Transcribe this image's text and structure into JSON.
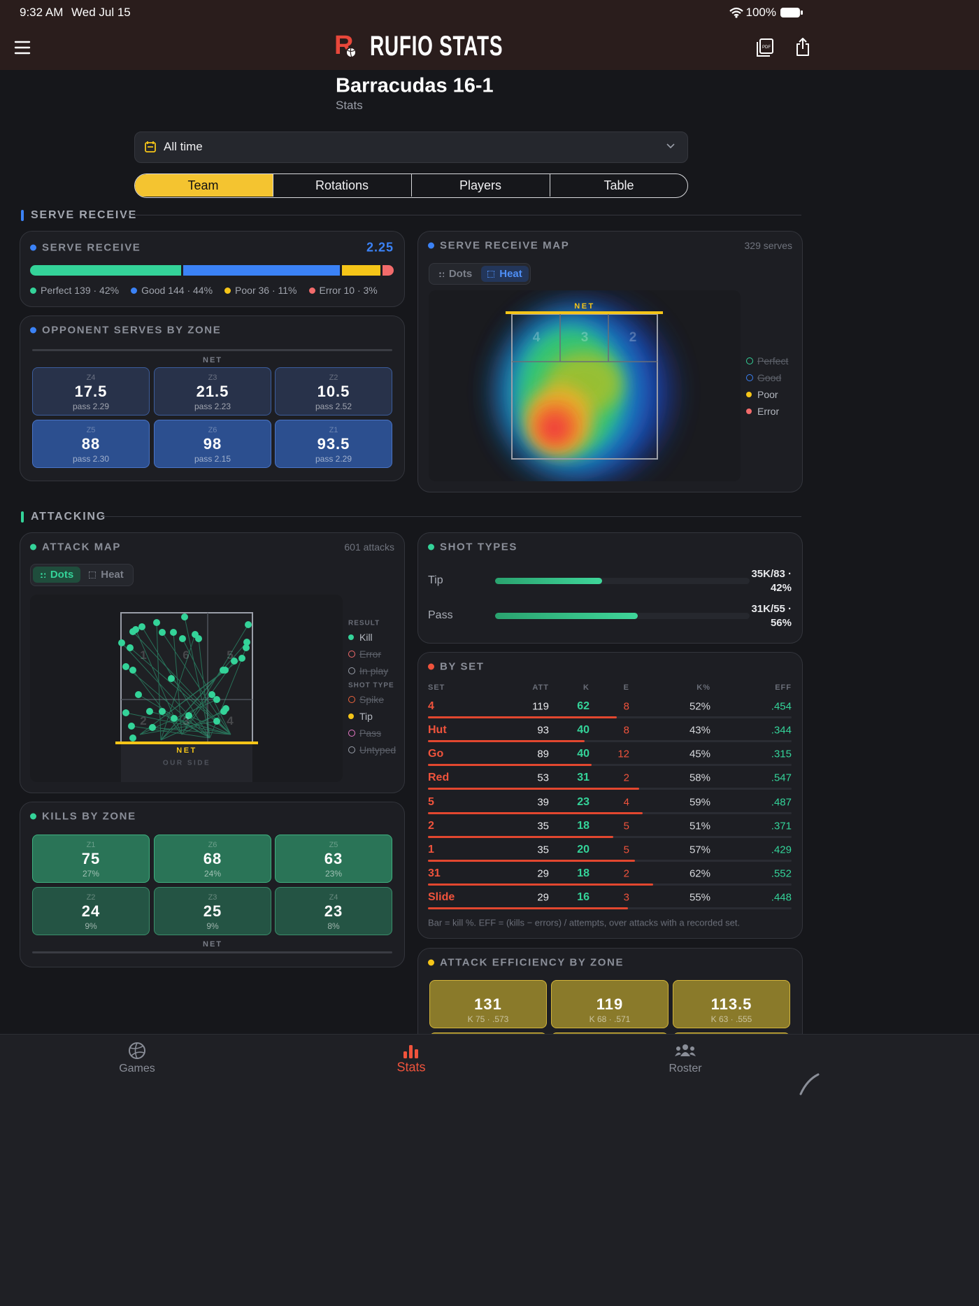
{
  "status_bar": {
    "time": "9:32 AM",
    "date": "Wed Jul 15",
    "battery": "100%"
  },
  "header": {
    "app_name": "RUFIO STATS"
  },
  "page": {
    "title": "Barracudas 16-1",
    "subtitle": "Stats"
  },
  "filter": {
    "label": "All time"
  },
  "tabs": {
    "items": [
      "Team",
      "Rotations",
      "Players",
      "Table"
    ],
    "active": 0
  },
  "serve_receive": {
    "section_title": "SERVE RECEIVE",
    "summary": {
      "title": "SERVE RECEIVE",
      "score": 2.25,
      "values": [
        139,
        144,
        36,
        10
      ],
      "value_labels": [
        "Perfect 139 · 42%",
        "Good 144 · 44%",
        "Poor 36 · 11%",
        "Error 10 · 3%"
      ],
      "colors": [
        "#34d399",
        "#3b82f6",
        "#f5c518",
        "#f26b6b"
      ]
    },
    "opponent_zones": {
      "title": "OPPONENT SERVES BY ZONE",
      "net_label": "NET",
      "zones": [
        {
          "zone": "Z4",
          "value": 17.5,
          "pass": "pass 2.29"
        },
        {
          "zone": "Z3",
          "value": 21.5,
          "pass": "pass 2.23"
        },
        {
          "zone": "Z2",
          "value": 10.5,
          "pass": "pass 2.52"
        },
        {
          "zone": "Z5",
          "value": 88,
          "pass": "pass 2.30"
        },
        {
          "zone": "Z6",
          "value": 98,
          "pass": "pass 2.15"
        },
        {
          "zone": "Z1",
          "value": 93.5,
          "pass": "pass 2.29"
        }
      ]
    },
    "map": {
      "title": "SERVE RECEIVE MAP",
      "count": "329 serves",
      "toggle": {
        "items": [
          "Dots",
          "Heat"
        ],
        "active": 1
      },
      "net_label": "NET",
      "zone_labels": [
        "4",
        "3",
        "2"
      ],
      "legend": [
        {
          "label": "Perfect",
          "color": "#34d399",
          "enabled": false
        },
        {
          "label": "Good",
          "color": "#3b82f6",
          "enabled": false
        },
        {
          "label": "Poor",
          "color": "#f5c518",
          "enabled": true
        },
        {
          "label": "Error",
          "color": "#f26b6b",
          "enabled": true
        }
      ]
    }
  },
  "attacking": {
    "section_title": "ATTACKING",
    "map": {
      "title": "ATTACK MAP",
      "count": "601 attacks",
      "toggle": {
        "items": [
          "Dots",
          "Heat"
        ],
        "active": 0
      },
      "zone_labels": [
        "1",
        "6",
        "5",
        "2",
        "3",
        "4"
      ],
      "net_label": "NET",
      "side_label": "OUR SIDE",
      "legend_groups": [
        {
          "title": "RESULT",
          "items": [
            {
              "label": "Kill",
              "color": "#34d399",
              "enabled": true
            },
            {
              "label": "Error",
              "color": "#f26b6b",
              "enabled": false
            },
            {
              "label": "In play",
              "color": "#9aa0aa",
              "enabled": false
            }
          ]
        },
        {
          "title": "SHOT TYPE",
          "items": [
            {
              "label": "Spike",
              "color": "#f0643c",
              "enabled": false
            },
            {
              "label": "Tip",
              "color": "#f5c518",
              "enabled": true
            },
            {
              "label": "Pass",
              "color": "#e879c6",
              "enabled": false
            },
            {
              "label": "Untyped",
              "color": "#9aa0aa",
              "enabled": false
            }
          ]
        }
      ]
    },
    "shot_types": {
      "title": "SHOT TYPES",
      "xlim": [
        0,
        100
      ],
      "categories": [
        "Tip",
        "Pass"
      ],
      "values": [
        42,
        56
      ],
      "value_labels": [
        "35K/83 · 42%",
        "31K/55 · 56%"
      ]
    },
    "by_set": {
      "title": "BY SET",
      "xlim": [
        0,
        100
      ],
      "columns": [
        "SET",
        "ATT",
        "K",
        "E",
        "K%",
        "EFF"
      ],
      "rows": [
        {
          "set": "4",
          "att": 119,
          "k": 62,
          "e": 8,
          "kill_pct": 52,
          "kill_pct_label": "52%",
          "eff": ".454"
        },
        {
          "set": "Hut",
          "att": 93,
          "k": 40,
          "e": 8,
          "kill_pct": 43,
          "kill_pct_label": "43%",
          "eff": ".344"
        },
        {
          "set": "Go",
          "att": 89,
          "k": 40,
          "e": 12,
          "kill_pct": 45,
          "kill_pct_label": "45%",
          "eff": ".315"
        },
        {
          "set": "Red",
          "att": 53,
          "k": 31,
          "e": 2,
          "kill_pct": 58,
          "kill_pct_label": "58%",
          "eff": ".547"
        },
        {
          "set": "5",
          "att": 39,
          "k": 23,
          "e": 4,
          "kill_pct": 59,
          "kill_pct_label": "59%",
          "eff": ".487"
        },
        {
          "set": "2",
          "att": 35,
          "k": 18,
          "e": 5,
          "kill_pct": 51,
          "kill_pct_label": "51%",
          "eff": ".371"
        },
        {
          "set": "1",
          "att": 35,
          "k": 20,
          "e": 5,
          "kill_pct": 57,
          "kill_pct_label": "57%",
          "eff": ".429"
        },
        {
          "set": "31",
          "att": 29,
          "k": 18,
          "e": 2,
          "kill_pct": 62,
          "kill_pct_label": "62%",
          "eff": ".552"
        },
        {
          "set": "Slide",
          "att": 29,
          "k": 16,
          "e": 3,
          "kill_pct": 55,
          "kill_pct_label": "55%",
          "eff": ".448"
        }
      ],
      "note": "Bar = kill %. EFF = (kills − errors) / attempts, over attacks with a recorded set."
    },
    "kills_by_zone": {
      "title": "KILLS BY ZONE",
      "net_label": "NET",
      "zones": [
        {
          "zone": "Z1",
          "value": 75,
          "share": "27%"
        },
        {
          "zone": "Z6",
          "value": 68,
          "share": "24%"
        },
        {
          "zone": "Z5",
          "value": 63,
          "share": "23%"
        },
        {
          "zone": "Z2",
          "value": 24,
          "share": "9%"
        },
        {
          "zone": "Z3",
          "value": 25,
          "share": "9%"
        },
        {
          "zone": "Z4",
          "value": 23,
          "share": "8%"
        }
      ]
    },
    "efficiency_by_zone": {
      "title": "ATTACK EFFICIENCY BY ZONE",
      "zones": [
        {
          "value": 131,
          "detail": "K 75 · .573"
        },
        {
          "value": 119,
          "detail": "K 68 · .571"
        },
        {
          "value": 113.5,
          "detail": "K 63 · .555"
        }
      ]
    }
  },
  "nav": {
    "items": [
      "Games",
      "Stats",
      "Roster"
    ],
    "active": 1
  }
}
